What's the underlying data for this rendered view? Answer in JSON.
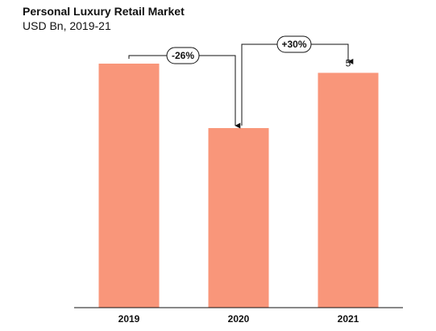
{
  "chart_data": {
    "type": "bar",
    "title": "Personal Luxury Retail Market",
    "subtitle": "USD Bn, 2019-21",
    "categories": [
      "2019",
      "2020",
      "2021"
    ],
    "values": [
      5.3,
      3.9,
      5.1
    ],
    "data_labels": [
      "",
      "",
      "5"
    ],
    "ylim": [
      0,
      5.3
    ],
    "grid": false,
    "bar_color": "#f9967a",
    "annotations": [
      {
        "label": "-26%",
        "from": 0,
        "to": 1
      },
      {
        "label": "+30%",
        "from": 1,
        "to": 2
      }
    ]
  }
}
